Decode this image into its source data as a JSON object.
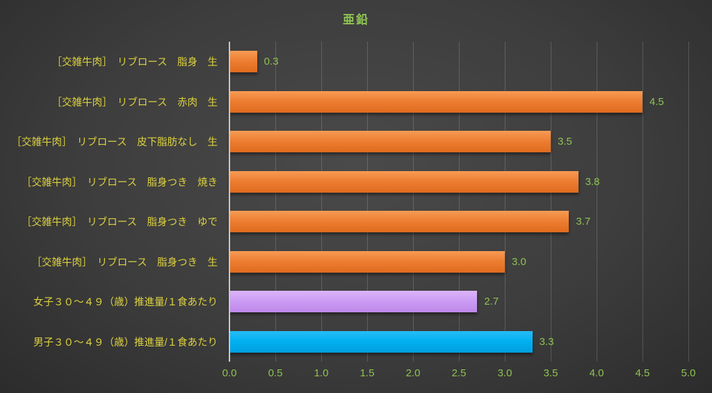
{
  "title": "亜鉛",
  "colors": {
    "background_center": "#4a4a4a",
    "background_edge": "#262626",
    "title_text": "#8ec351",
    "category_text": "#ddd23f",
    "value_text": "#8ec351",
    "axis_text": "#8ec351",
    "gridline": "rgba(255,255,255,0.17)",
    "axis_line": "#c9c9c9",
    "bar_orange": "#ed7d31",
    "bar_purple": "#cc9cf4",
    "bar_blue": "#00b0f0"
  },
  "chart_data": {
    "type": "bar",
    "orientation": "horizontal",
    "title": "亜鉛",
    "categories": [
      "［交雑牛肉］　リブロース　脂身　生",
      "［交雑牛肉］　リブロース　赤肉　生",
      "［交雑牛肉］　リブロース　皮下脂肪なし　生",
      "［交雑牛肉］　リブロース　脂身つき　焼き",
      "［交雑牛肉］　リブロース　脂身つき　ゆで",
      "［交雑牛肉］　リブロース　脂身つき　生",
      "女子３０～４９（歳）推進量/１食あたり",
      "男子３０～４９（歳）推進量/１食あたり"
    ],
    "values": [
      0.3,
      4.5,
      3.5,
      3.8,
      3.7,
      3.0,
      2.7,
      3.3
    ],
    "value_labels": [
      "0.3",
      "4.5",
      "3.5",
      "3.8",
      "3.7",
      "3.0",
      "2.7",
      "3.3"
    ],
    "bar_colors": [
      "orange",
      "orange",
      "orange",
      "orange",
      "orange",
      "orange",
      "purple",
      "blue"
    ],
    "xlim": [
      0,
      5
    ],
    "x_ticks": [
      "0.0",
      "0.5",
      "1.0",
      "1.5",
      "2.0",
      "2.5",
      "3.0",
      "3.5",
      "4.0",
      "4.5",
      "5.0"
    ],
    "grid": "vertical",
    "legend": "none"
  }
}
